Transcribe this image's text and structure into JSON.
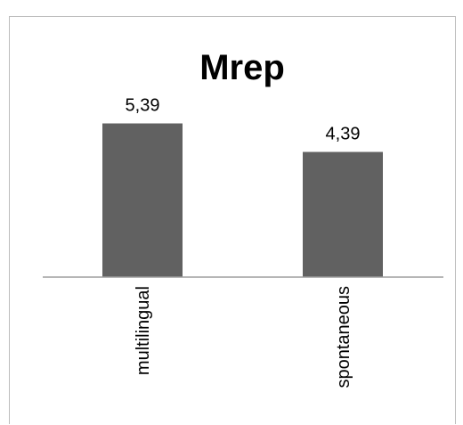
{
  "chart_data": {
    "type": "bar",
    "title": "Mrep",
    "categories": [
      "multilingual",
      "spontaneous"
    ],
    "values": [
      5.39,
      4.39
    ],
    "value_labels": [
      "5,39",
      "4,39"
    ],
    "xlabel": "",
    "ylabel": "",
    "ylim": [
      0,
      6
    ],
    "grid": false,
    "legend": "none",
    "bar_color": "#616161",
    "axis_color": "#9e9e9e"
  }
}
